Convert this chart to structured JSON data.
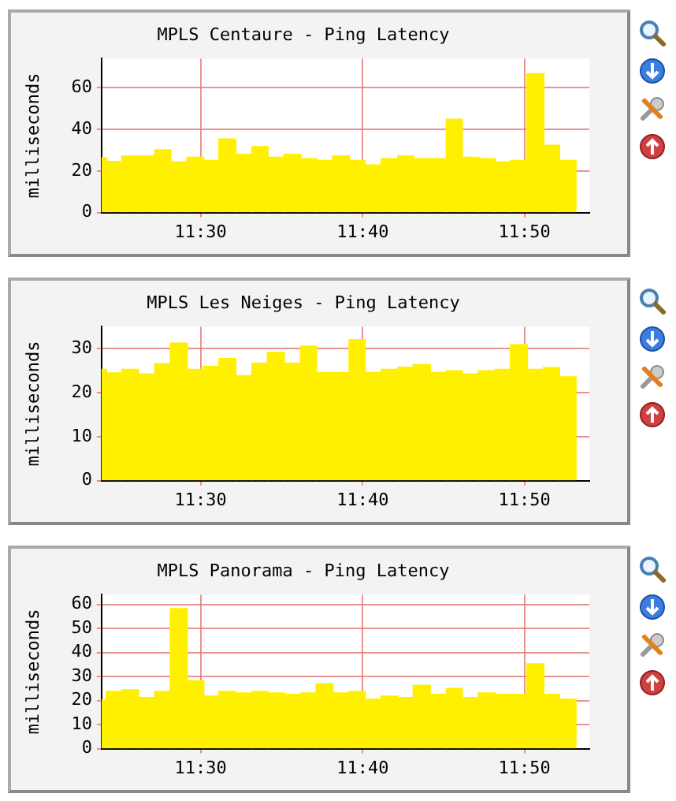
{
  "chart_data": [
    {
      "type": "histogram",
      "title": "MPLS Centaure - Ping Latency",
      "ylabel": "milliseconds",
      "grid": true,
      "legend": false,
      "color": "#fff000",
      "bins": [
        11.398,
        11.403,
        11.419,
        11.436,
        11.453,
        11.469,
        11.486,
        11.503,
        11.519,
        11.536,
        11.553,
        11.569,
        11.586,
        11.603,
        11.619,
        11.636,
        11.653,
        11.669,
        11.686,
        11.703,
        11.719,
        11.736,
        11.753,
        11.769,
        11.786,
        11.803,
        11.819,
        11.836,
        11.853,
        11.869,
        11.886
      ],
      "xlim": [
        11.398,
        11.9
      ],
      "xticks": [
        {
          "value": 11.5,
          "label": "11:30"
        },
        {
          "value": 11.6667,
          "label": "11:40"
        },
        {
          "value": 11.8333,
          "label": "11:50"
        }
      ],
      "ylim": [
        0,
        74
      ],
      "yticks": [
        0,
        20,
        40,
        60
      ],
      "values": [
        26.3,
        24.6,
        27.3,
        27.3,
        30.2,
        24.4,
        26.6,
        25.1,
        35.4,
        28,
        31.7,
        26.6,
        28,
        25.9,
        25.1,
        27.3,
        25.1,
        22.9,
        25.9,
        27.3,
        25.9,
        25.9,
        44.9,
        26.6,
        25.9,
        24.4,
        25.1,
        66.8,
        32.4,
        25.1
      ]
    },
    {
      "type": "histogram",
      "title": "MPLS Les Neiges - Ping Latency",
      "ylabel": "milliseconds",
      "grid": true,
      "legend": false,
      "color": "#fff000",
      "bins": [
        11.398,
        11.403,
        11.419,
        11.436,
        11.453,
        11.469,
        11.486,
        11.503,
        11.519,
        11.536,
        11.553,
        11.569,
        11.586,
        11.603,
        11.619,
        11.636,
        11.653,
        11.669,
        11.686,
        11.703,
        11.719,
        11.736,
        11.753,
        11.769,
        11.786,
        11.803,
        11.819,
        11.836,
        11.853,
        11.869,
        11.886
      ],
      "xlim": [
        11.398,
        11.9
      ],
      "xticks": [
        {
          "value": 11.5,
          "label": "11:30"
        },
        {
          "value": 11.6667,
          "label": "11:40"
        },
        {
          "value": 11.8333,
          "label": "11:50"
        }
      ],
      "ylim": [
        0,
        35
      ],
      "yticks": [
        0,
        10,
        20,
        30
      ],
      "values": [
        25.3,
        24.5,
        25.3,
        24.3,
        26.6,
        31.3,
        25.3,
        26,
        27.8,
        23.9,
        26.7,
        29.2,
        26.7,
        30.6,
        24.6,
        24.6,
        32.1,
        24.6,
        25.3,
        25.8,
        26.4,
        24.6,
        25,
        24.3,
        25,
        25.3,
        30.9,
        25.3,
        25.7,
        23.6
      ]
    },
    {
      "type": "histogram",
      "title": "MPLS Panorama - Ping Latency",
      "ylabel": "milliseconds",
      "grid": true,
      "legend": false,
      "color": "#fff000",
      "bins": [
        11.398,
        11.403,
        11.419,
        11.436,
        11.453,
        11.469,
        11.486,
        11.503,
        11.519,
        11.536,
        11.553,
        11.569,
        11.586,
        11.603,
        11.619,
        11.636,
        11.653,
        11.669,
        11.686,
        11.703,
        11.719,
        11.736,
        11.753,
        11.769,
        11.786,
        11.803,
        11.819,
        11.836,
        11.853,
        11.869,
        11.886
      ],
      "xlim": [
        11.398,
        11.9
      ],
      "xticks": [
        {
          "value": 11.5,
          "label": "11:30"
        },
        {
          "value": 11.6667,
          "label": "11:40"
        },
        {
          "value": 11.8333,
          "label": "11:50"
        }
      ],
      "ylim": [
        0,
        64
      ],
      "yticks": [
        0,
        10,
        20,
        30,
        40,
        50,
        60
      ],
      "values": [
        20.2,
        23.8,
        24.5,
        21.3,
        23.8,
        58.3,
        28.3,
        21.9,
        23.8,
        23.2,
        23.8,
        23.2,
        22.6,
        23.2,
        27,
        23.2,
        23.8,
        20.6,
        21.9,
        21.3,
        26.4,
        22.6,
        25.1,
        21.3,
        23.2,
        22.6,
        22.6,
        35.3,
        22.6,
        20.6
      ]
    }
  ]
}
